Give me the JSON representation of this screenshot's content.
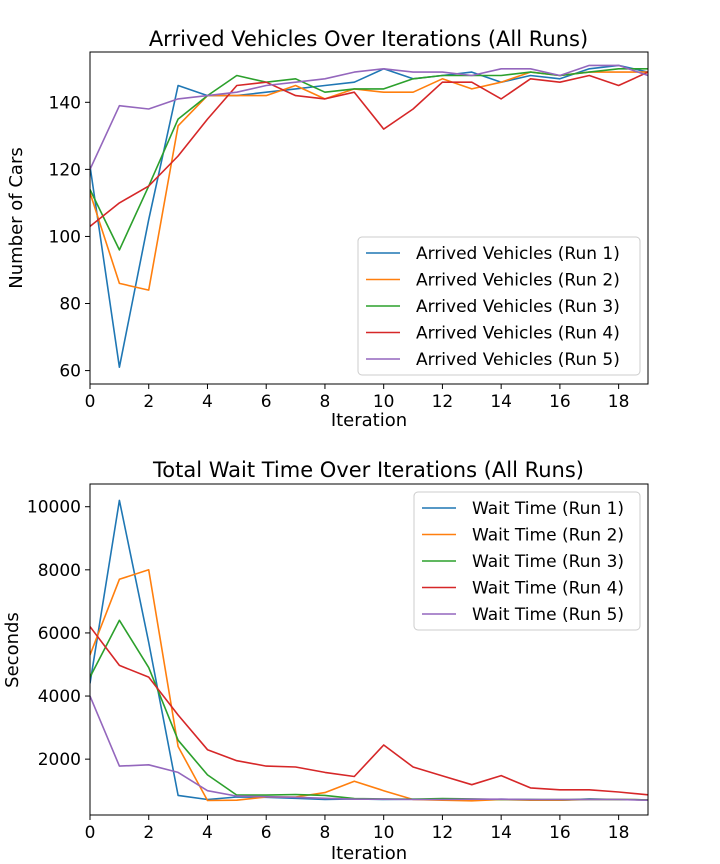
{
  "colors": {
    "run1": "#1f77b4",
    "run2": "#ff7f0e",
    "run3": "#2ca02c",
    "run4": "#d62728",
    "run5": "#9467bd"
  },
  "chart_data": [
    {
      "type": "line",
      "title": "Arrived Vehicles Over Iterations (All Runs)",
      "xlabel": "Iteration",
      "ylabel": "Number of Cars",
      "xlim": [
        0,
        19
      ],
      "ylim": [
        56,
        155
      ],
      "xticks": [
        0,
        2,
        4,
        6,
        8,
        10,
        12,
        14,
        16,
        18
      ],
      "yticks": [
        60,
        80,
        100,
        120,
        140
      ],
      "grid": false,
      "legend_position": "lower right",
      "x": [
        0,
        1,
        2,
        3,
        4,
        5,
        6,
        7,
        8,
        9,
        10,
        11,
        12,
        13,
        14,
        15,
        16,
        17,
        18,
        19
      ],
      "series": [
        {
          "name": "Arrived Vehicles (Run 1)",
          "color": "#1f77b4",
          "values": [
            121,
            61,
            105,
            145,
            142,
            142,
            143,
            144,
            145,
            146,
            150,
            147,
            148,
            149,
            146,
            148,
            147,
            150,
            151,
            149
          ]
        },
        {
          "name": "Arrived Vehicles (Run 2)",
          "color": "#ff7f0e",
          "values": [
            113,
            86,
            84,
            133,
            142,
            142,
            142,
            145,
            141,
            144,
            143,
            143,
            147,
            144,
            146,
            149,
            148,
            149,
            149,
            149
          ]
        },
        {
          "name": "Arrived Vehicles (Run 3)",
          "color": "#2ca02c",
          "values": [
            114,
            96,
            115,
            135,
            142,
            148,
            146,
            147,
            143,
            144,
            144,
            147,
            148,
            148,
            148,
            149,
            148,
            149,
            150,
            150
          ]
        },
        {
          "name": "Arrived Vehicles (Run 4)",
          "color": "#d62728",
          "values": [
            103,
            110,
            115,
            124,
            135,
            145,
            146,
            142,
            141,
            143,
            132,
            138,
            146,
            146,
            141,
            147,
            146,
            148,
            145,
            149
          ]
        },
        {
          "name": "Arrived Vehicles (Run 5)",
          "color": "#9467bd",
          "values": [
            120,
            139,
            138,
            141,
            142,
            143,
            145,
            146,
            147,
            149,
            150,
            149,
            149,
            148,
            150,
            150,
            148,
            151,
            151,
            148
          ]
        }
      ]
    },
    {
      "type": "line",
      "title": "Total Wait Time Over Iterations (All Runs)",
      "xlabel": "Iteration",
      "ylabel": "Seconds",
      "xlim": [
        0,
        19
      ],
      "ylim": [
        230,
        10720
      ],
      "xticks": [
        0,
        2,
        4,
        6,
        8,
        10,
        12,
        14,
        16,
        18
      ],
      "yticks": [
        2000,
        4000,
        6000,
        8000,
        10000
      ],
      "grid": false,
      "legend_position": "upper right",
      "x": [
        0,
        1,
        2,
        3,
        4,
        5,
        6,
        7,
        8,
        9,
        10,
        11,
        12,
        13,
        14,
        15,
        16,
        17,
        18,
        19
      ],
      "series": [
        {
          "name": "Wait Time (Run 1)",
          "color": "#1f77b4",
          "values": [
            4400,
            10200,
            5700,
            850,
            720,
            800,
            790,
            760,
            720,
            740,
            720,
            730,
            720,
            700,
            730,
            720,
            700,
            740,
            720,
            710
          ]
        },
        {
          "name": "Wait Time (Run 2)",
          "color": "#ff7f0e",
          "values": [
            5300,
            7700,
            8000,
            2400,
            690,
            700,
            800,
            800,
            940,
            1300,
            1000,
            720,
            700,
            680,
            720,
            700,
            700,
            720,
            720,
            710
          ]
        },
        {
          "name": "Wait Time (Run 3)",
          "color": "#2ca02c",
          "values": [
            4600,
            6400,
            4900,
            2600,
            1500,
            860,
            860,
            880,
            850,
            750,
            740,
            730,
            750,
            740,
            720,
            720,
            720,
            720,
            720,
            710
          ]
        },
        {
          "name": "Wait Time (Run 4)",
          "color": "#d62728",
          "values": [
            6200,
            4970,
            4600,
            3400,
            2300,
            1950,
            1780,
            1750,
            1580,
            1450,
            2450,
            1750,
            1470,
            1190,
            1480,
            1090,
            1030,
            1030,
            960,
            870
          ]
        },
        {
          "name": "Wait Time (Run 5)",
          "color": "#9467bd",
          "values": [
            4000,
            1780,
            1820,
            1580,
            1000,
            830,
            810,
            790,
            760,
            730,
            730,
            720,
            720,
            730,
            730,
            720,
            720,
            720,
            720,
            700
          ]
        }
      ]
    }
  ]
}
